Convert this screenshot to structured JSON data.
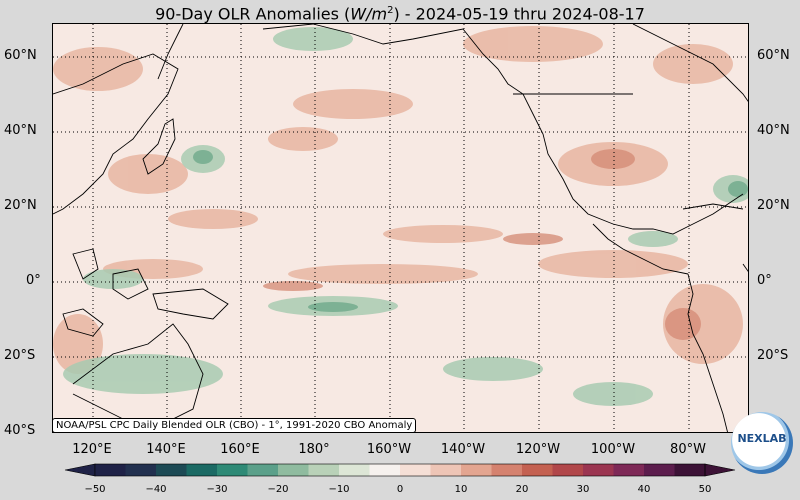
{
  "title": {
    "prefix": "90-Day OLR Anomalies (",
    "unit_base": "W/m",
    "unit_exp": "2",
    "suffix": ") - 2024-05-19 thru 2024-08-17"
  },
  "lat_labels": [
    "60°N",
    "40°N",
    "20°N",
    "0°",
    "20°S",
    "40°S"
  ],
  "lon_labels": [
    "120°E",
    "140°E",
    "160°E",
    "180°",
    "160°W",
    "140°W",
    "120°W",
    "100°W",
    "80°W"
  ],
  "source_note": "NOAA/PSL CPC Daily Blended OLR (CBO) - 1°, 1991-2020 CBO Anomaly",
  "colorbar": {
    "ticks": [
      "−50",
      "−40",
      "−30",
      "−20",
      "−10",
      "0",
      "10",
      "20",
      "30",
      "40",
      "50"
    ],
    "colors": [
      "#1f2247",
      "#22304f",
      "#1d4a55",
      "#1b6a64",
      "#2e8a76",
      "#5ba08a",
      "#8fbb9f",
      "#b9d1b8",
      "#dde6d6",
      "#f6f1ee",
      "#f5dfd6",
      "#eec5b6",
      "#e3a590",
      "#d5826f",
      "#c46151",
      "#b1474a",
      "#9b3551",
      "#7e2957",
      "#5c1d4d",
      "#3c1236"
    ]
  },
  "logo": {
    "text": "NEXLAB"
  }
}
